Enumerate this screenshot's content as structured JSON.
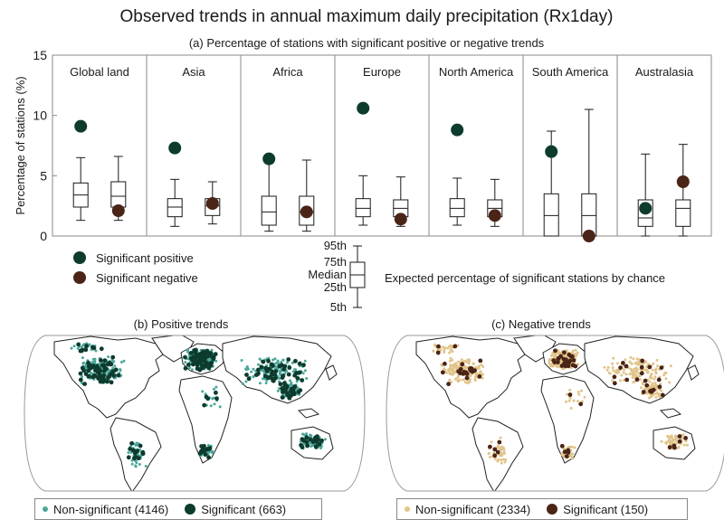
{
  "title": "Observed trends in annual maximum daily precipitation (Rx1day)",
  "colors": {
    "positive": "#0d3b2e",
    "negative": "#4a2416",
    "pos_nonsig": "#4aa79a",
    "neg_nonsig": "#e2c48a",
    "box": "#1a1a1a",
    "border": "#888888"
  },
  "chart_data": [
    {
      "type": "box",
      "title": "(a) Percentage of stations with significant positive or negative trends",
      "ylabel": "Percentage of stations (%)",
      "ylim": [
        0,
        15
      ],
      "yticks": [
        0,
        5,
        10,
        15
      ],
      "categories": [
        "Global land",
        "Asia",
        "Africa",
        "Europe",
        "North America",
        "South America",
        "Australasia"
      ],
      "expected_by_chance": {
        "positive": [
          {
            "p5": 1.3,
            "p25": 2.4,
            "median": 3.4,
            "p75": 4.4,
            "p95": 6.5
          },
          {
            "p5": 0.8,
            "p25": 1.6,
            "median": 2.4,
            "p75": 3.1,
            "p95": 4.7
          },
          {
            "p5": 0.4,
            "p25": 0.9,
            "median": 2.0,
            "p75": 3.3,
            "p95": 6.3
          },
          {
            "p5": 0.9,
            "p25": 1.6,
            "median": 2.3,
            "p75": 3.1,
            "p95": 5.0
          },
          {
            "p5": 0.9,
            "p25": 1.6,
            "median": 2.3,
            "p75": 3.1,
            "p95": 4.8
          },
          {
            "p5": 0.0,
            "p25": 0.0,
            "median": 1.7,
            "p75": 3.5,
            "p95": 8.7
          },
          {
            "p5": 0.0,
            "p25": 0.8,
            "median": 1.5,
            "p75": 3.0,
            "p95": 6.8
          }
        ],
        "negative": [
          {
            "p5": 1.3,
            "p25": 2.4,
            "median": 3.3,
            "p75": 4.5,
            "p95": 6.6
          },
          {
            "p5": 1.0,
            "p25": 1.7,
            "median": 2.5,
            "p75": 3.1,
            "p95": 4.5
          },
          {
            "p5": 0.4,
            "p25": 0.9,
            "median": 2.0,
            "p75": 3.3,
            "p95": 6.3
          },
          {
            "p5": 0.8,
            "p25": 1.6,
            "median": 2.3,
            "p75": 3.0,
            "p95": 4.9
          },
          {
            "p5": 0.8,
            "p25": 1.6,
            "median": 2.3,
            "p75": 3.0,
            "p95": 4.7
          },
          {
            "p5": 0.0,
            "p25": 0.0,
            "median": 1.7,
            "p75": 3.5,
            "p95": 10.5
          },
          {
            "p5": 0.0,
            "p25": 0.8,
            "median": 2.3,
            "p75": 3.0,
            "p95": 7.6
          }
        ]
      },
      "series": [
        {
          "name": "Significant positive",
          "values": [
            9.1,
            7.3,
            6.4,
            10.6,
            8.8,
            7.0,
            2.3
          ]
        },
        {
          "name": "Significant negative",
          "values": [
            2.1,
            2.7,
            2.0,
            1.4,
            1.7,
            0.0,
            4.5
          ]
        }
      ],
      "box_key": {
        "labels": [
          "95th",
          "75th",
          "Median",
          "25th",
          "5th"
        ],
        "caption": "Expected percentage of significant stations by chance"
      }
    },
    {
      "type": "map",
      "title": "(b) Positive trends",
      "legend": [
        {
          "label": "Non-significant (4146)",
          "color": "#4aa79a"
        },
        {
          "label": "Significant (663)",
          "color": "#0d3b2e"
        }
      ]
    },
    {
      "type": "map",
      "title": "(c) Negative trends",
      "legend": [
        {
          "label": "Non-significant (2334)",
          "color": "#e2c48a"
        },
        {
          "label": "Significant (150)",
          "color": "#4a2416"
        }
      ]
    }
  ]
}
